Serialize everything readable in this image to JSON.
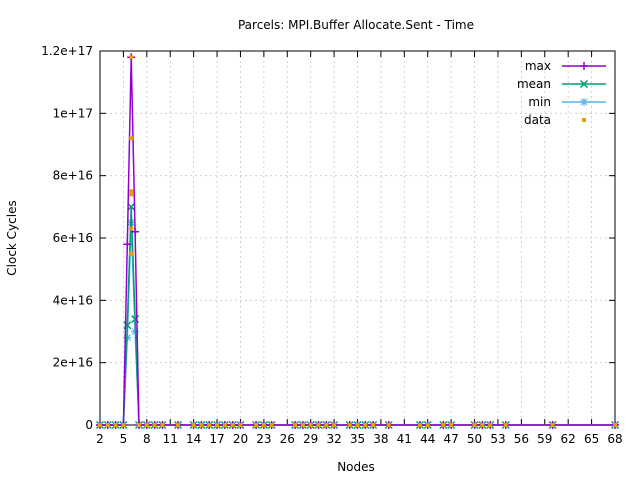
{
  "chart_data": {
    "type": "line",
    "title": "Parcels: MPI.Buffer Allocate.Sent - Time",
    "xlabel": "Nodes",
    "ylabel": "Clock Cycles",
    "x_ticks": [
      "2",
      "5",
      "8",
      "11",
      "14",
      "17",
      "20",
      "23",
      "26",
      "29",
      "32",
      "35",
      "38",
      "41",
      "44",
      "47",
      "50",
      "53",
      "56",
      "59",
      "62",
      "65",
      "68"
    ],
    "y_ticks": [
      "0",
      "2e+16",
      "4e+16",
      "6e+16",
      "8e+16",
      "1e+17",
      "1.2e+17"
    ],
    "y_tick_values": [
      0,
      2e+16,
      4e+16,
      6e+16,
      8e+16,
      1e+17,
      1.2e+17
    ],
    "xlim": [
      2,
      68
    ],
    "ylim": [
      0,
      1.2e+17
    ],
    "grid": true,
    "legend_position": "top-right",
    "x": [
      2,
      3,
      4,
      5,
      5.5,
      6,
      6.5,
      7,
      8,
      9,
      10,
      12,
      14,
      15,
      16,
      17,
      18,
      19,
      20,
      22,
      23,
      24,
      27,
      28,
      29,
      30,
      31,
      32,
      34,
      35,
      36,
      37,
      39,
      43,
      44,
      46,
      47,
      50,
      51,
      52,
      54,
      60,
      68
    ],
    "series": [
      {
        "name": "max",
        "color": "#9400d3",
        "values": [
          0,
          0,
          0,
          0,
          5.8e+16,
          1.18e+17,
          6.2e+16,
          0,
          0,
          0,
          0,
          0,
          0,
          0,
          0,
          0,
          0,
          0,
          0,
          0,
          0,
          0,
          0,
          0,
          0,
          0,
          0,
          0,
          0,
          0,
          0,
          0,
          0,
          0,
          0,
          0,
          0,
          0,
          0,
          0,
          0,
          0,
          0
        ]
      },
      {
        "name": "mean",
        "color": "#009e73",
        "values": [
          0,
          0,
          0,
          0,
          3.2e+16,
          7e+16,
          3.4e+16,
          0,
          0,
          0,
          0,
          0,
          0,
          0,
          0,
          0,
          0,
          0,
          0,
          0,
          0,
          0,
          0,
          0,
          0,
          0,
          0,
          0,
          0,
          0,
          0,
          0,
          0,
          0,
          0,
          0,
          0,
          0,
          0,
          0,
          0,
          0,
          0
        ]
      },
      {
        "name": "min",
        "color": "#56b4e9",
        "values": [
          0,
          0,
          0,
          0,
          2.8e+16,
          6.5e+16,
          3e+16,
          0,
          0,
          0,
          0,
          0,
          0,
          0,
          0,
          0,
          0,
          0,
          0,
          0,
          0,
          0,
          0,
          0,
          0,
          0,
          0,
          0,
          0,
          0,
          0,
          0,
          0,
          0,
          0,
          0,
          0,
          0,
          0,
          0,
          0,
          0,
          0
        ]
      },
      {
        "name": "data",
        "color": "#e69f00",
        "points": [
          [
            6,
            1.18e+17
          ],
          [
            6,
            9.2e+16
          ],
          [
            6,
            7.5e+16
          ],
          [
            6,
            7.4e+16
          ],
          [
            6,
            6.3e+16
          ],
          [
            6,
            5.5e+16
          ],
          [
            2,
            0
          ],
          [
            3,
            0
          ],
          [
            4,
            0
          ],
          [
            5,
            0
          ],
          [
            7,
            0
          ],
          [
            8,
            0
          ],
          [
            9,
            0
          ],
          [
            10,
            0
          ],
          [
            12,
            0
          ],
          [
            14,
            0
          ],
          [
            15,
            0
          ],
          [
            16,
            0
          ],
          [
            17,
            0
          ],
          [
            18,
            0
          ],
          [
            19,
            0
          ],
          [
            20,
            0
          ],
          [
            22,
            0
          ],
          [
            23,
            0
          ],
          [
            24,
            0
          ],
          [
            27,
            0
          ],
          [
            28,
            0
          ],
          [
            29,
            0
          ],
          [
            30,
            0
          ],
          [
            31,
            0
          ],
          [
            32,
            0
          ],
          [
            34,
            0
          ],
          [
            35,
            0
          ],
          [
            36,
            0
          ],
          [
            37,
            0
          ],
          [
            39,
            0
          ],
          [
            43,
            0
          ],
          [
            44,
            0
          ],
          [
            46,
            0
          ],
          [
            47,
            0
          ],
          [
            50,
            0
          ],
          [
            51,
            0
          ],
          [
            52,
            0
          ],
          [
            54,
            0
          ],
          [
            60,
            0
          ],
          [
            68,
            0
          ]
        ]
      }
    ]
  }
}
